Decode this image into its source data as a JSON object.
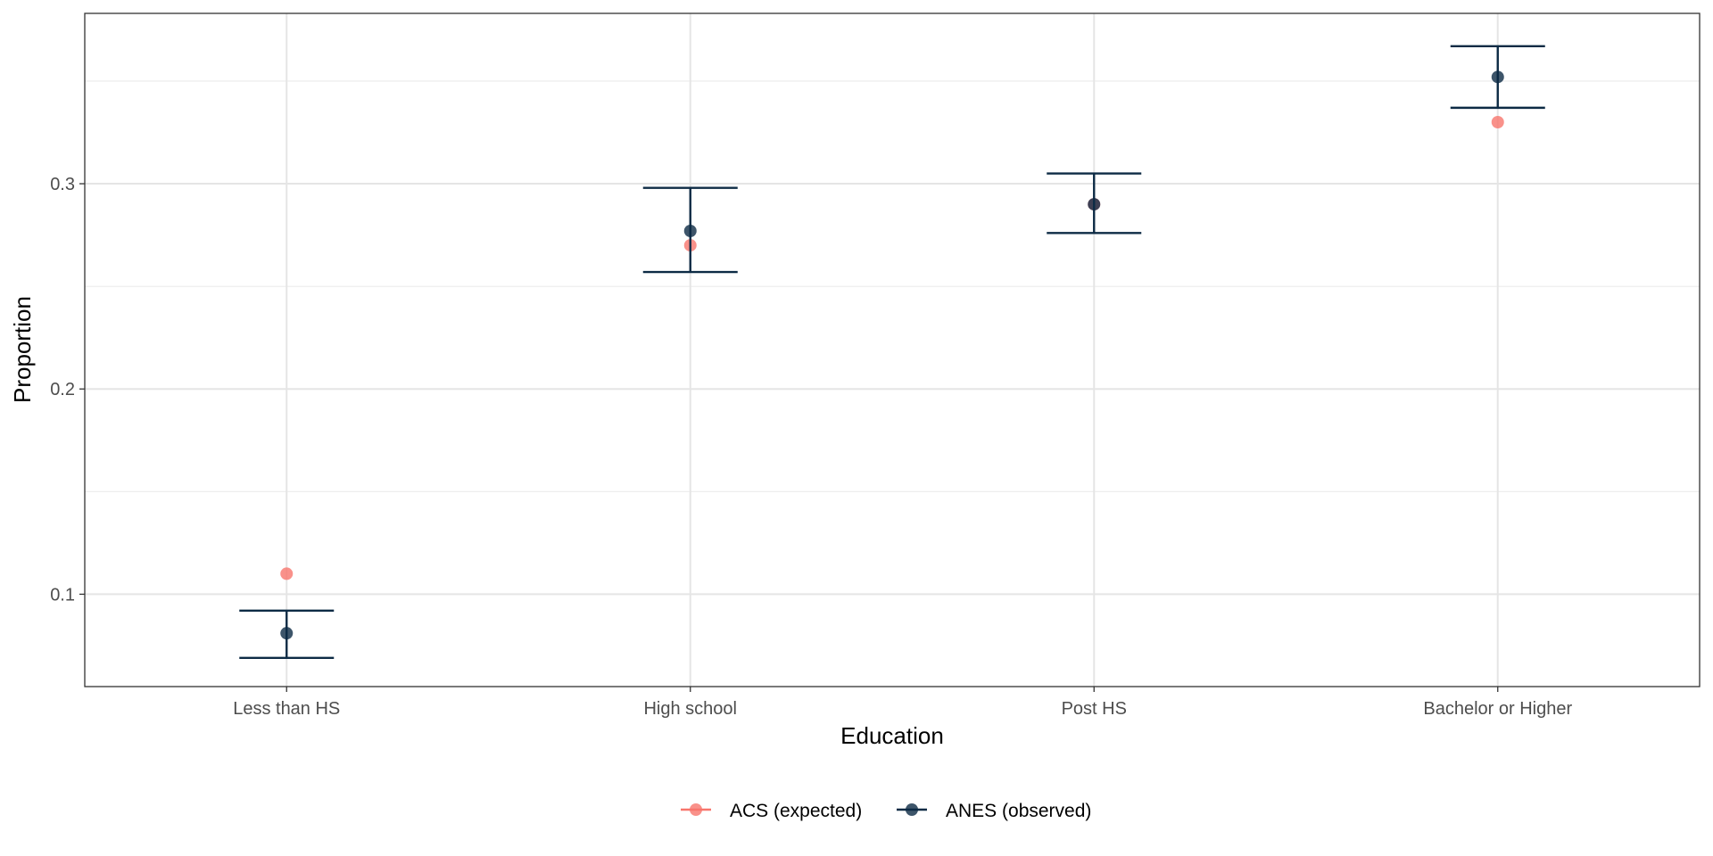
{
  "chart_data": {
    "type": "scatter",
    "title": "",
    "xlabel": "Education",
    "ylabel": "Proportion",
    "categories": [
      "Less than HS",
      "High school",
      "Post HS",
      "Bachelor or Higher"
    ],
    "ylim": [
      0.055,
      0.383
    ],
    "y_ticks": [
      0.1,
      0.2,
      0.3
    ],
    "y_tick_labels": [
      "0.1",
      "0.2",
      "0.3"
    ],
    "grid": true,
    "legend_position": "bottom",
    "series": [
      {
        "name": "ACS (expected)",
        "color": "#F8766D",
        "values": [
          0.11,
          0.27,
          0.29,
          0.33
        ]
      },
      {
        "name": "ANES (observed)",
        "color": "#0D2B45",
        "values": [
          0.081,
          0.277,
          0.29,
          0.352
        ],
        "error_low": [
          0.069,
          0.257,
          0.276,
          0.337
        ],
        "error_high": [
          0.092,
          0.298,
          0.305,
          0.367
        ]
      }
    ]
  }
}
